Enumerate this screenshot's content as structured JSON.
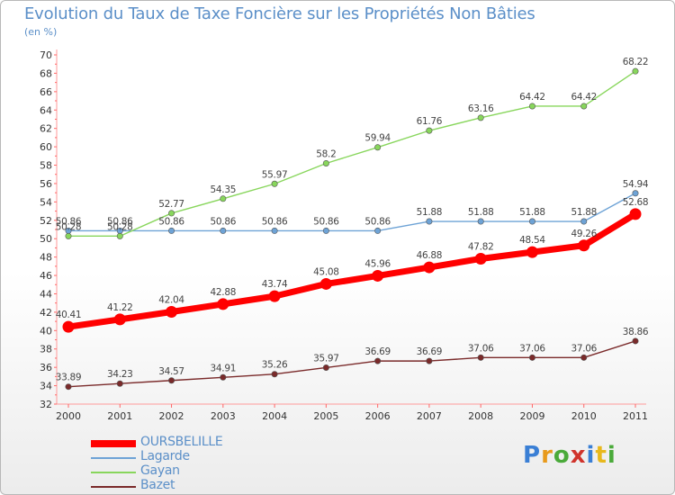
{
  "title": "Evolution du Taux de Taxe Foncière sur les Propriétés Non Bâties",
  "unit": "(en %)",
  "logo": {
    "text": "Proxiti"
  },
  "chart_data": {
    "type": "line",
    "x": [
      "2000",
      "2001",
      "2002",
      "2003",
      "2004",
      "2005",
      "2006",
      "2007",
      "2008",
      "2009",
      "2010",
      "2011"
    ],
    "ylim": [
      32,
      70
    ],
    "yticks": [
      32,
      34,
      36,
      38,
      40,
      42,
      44,
      46,
      48,
      50,
      52,
      54,
      56,
      58,
      60,
      62,
      64,
      66,
      68,
      70
    ],
    "grid": false,
    "legend_position": "bottom-left",
    "series": [
      {
        "name": "OURSBELILLE",
        "color": "#ff0000",
        "values": [
          40.41,
          41.22,
          42.04,
          42.88,
          43.74,
          45.08,
          45.96,
          46.88,
          47.82,
          48.54,
          49.26,
          52.68
        ],
        "labels": [
          "40.41",
          "41.22",
          "42.04",
          "42.88",
          "43.74",
          "45.08",
          "45.96",
          "46.88",
          "47.82",
          "48.54",
          "49.26",
          "52.68"
        ]
      },
      {
        "name": "Lagarde",
        "color": "#6ea3d6",
        "values": [
          50.86,
          50.86,
          50.86,
          50.86,
          50.86,
          50.86,
          50.86,
          51.88,
          51.88,
          51.88,
          51.88,
          54.94
        ],
        "labels": [
          "50.86",
          "50.86",
          "50.86",
          "50.86",
          "50.86",
          "50.86",
          "50.86",
          "51.88",
          "51.88",
          "51.88",
          "51.88",
          "54.94"
        ]
      },
      {
        "name": "Gayan",
        "color": "#88d65c",
        "values": [
          50.28,
          50.28,
          52.77,
          54.35,
          55.97,
          58.2,
          59.94,
          61.76,
          63.16,
          64.42,
          64.42,
          68.22
        ],
        "labels": [
          "50.28",
          "50.28",
          "52.77",
          "54.35",
          "55.97",
          "58.2",
          "59.94",
          "61.76",
          "63.16",
          "64.42",
          "64.42",
          "68.22"
        ]
      },
      {
        "name": "Bazet",
        "color": "#7a2a2a",
        "values": [
          33.89,
          34.23,
          34.57,
          34.91,
          35.26,
          35.97,
          36.69,
          36.69,
          37.06,
          37.06,
          37.06,
          38.86
        ],
        "labels": [
          "33.89",
          "34.23",
          "34.57",
          "34.91",
          "35.26",
          "35.97",
          "36.69",
          "36.69",
          "37.06",
          "37.06",
          "37.06",
          "38.86"
        ]
      }
    ]
  }
}
